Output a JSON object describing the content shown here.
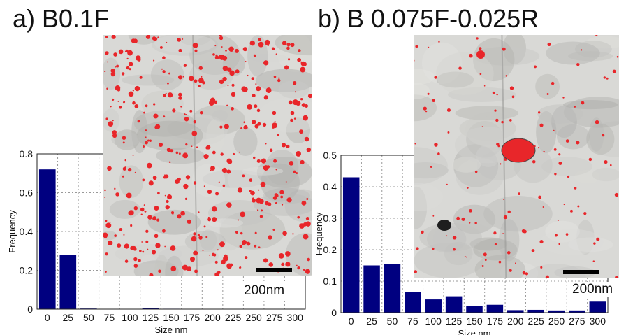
{
  "chart_data": [
    {
      "type": "bar",
      "panel_label": "a) B0.1F",
      "categories": [
        "0",
        "25",
        "50",
        "75",
        "100",
        "125",
        "150",
        "175",
        "200",
        "225",
        "250",
        "275",
        "300"
      ],
      "values": [
        0.72,
        0.28,
        0.003,
        0,
        0,
        0.004,
        0.002,
        0,
        0,
        0,
        0,
        0,
        0
      ],
      "xlabel": "Size nm",
      "ylabel": "Frequency",
      "ylim": [
        0,
        0.8
      ],
      "yticks": [
        "0",
        "0.2",
        "0.4",
        "0.6",
        "0.8"
      ],
      "grid": true,
      "bar_color": "#000080",
      "inset_image": {
        "scale_bar_label": "200nm",
        "particle_color": "#e8262a"
      }
    },
    {
      "type": "bar",
      "panel_label": "b) B 0.075F-0.025R",
      "categories": [
        "0",
        "25",
        "50",
        "75",
        "100",
        "125",
        "150",
        "175",
        "200",
        "225",
        "250",
        "275",
        "300"
      ],
      "values": [
        0.43,
        0.15,
        0.155,
        0.065,
        0.042,
        0.052,
        0.02,
        0.025,
        0.008,
        0.009,
        0.007,
        0.007,
        0.035
      ],
      "xlabel": "Size nm",
      "ylabel": "Frequency",
      "ylim": [
        0,
        0.5
      ],
      "yticks": [
        "0",
        "0.1",
        "0.2",
        "0.3",
        "0.4",
        "0.5"
      ],
      "grid": true,
      "bar_color": "#000080",
      "inset_image": {
        "scale_bar_label": "200nm",
        "particle_color": "#e8262a"
      }
    }
  ]
}
